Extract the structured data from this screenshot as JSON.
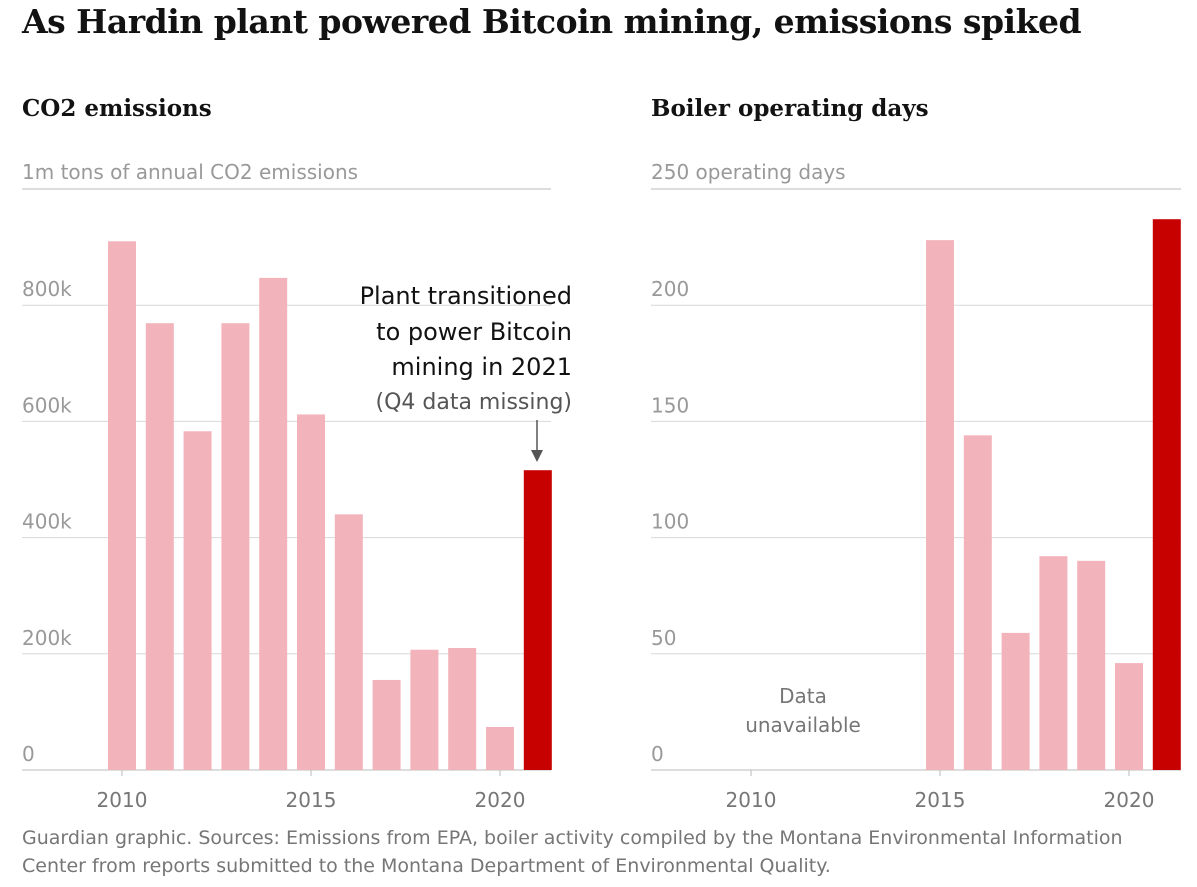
{
  "title": "As Hardin plant powered Bitcoin mining, emissions spiked",
  "footer": "Guardian graphic. Sources: Emissions from EPA, boiler activity compiled by the Montana Environmental Information Center from reports submitted to the Montana Department of Environmental Quality.",
  "colors": {
    "bar": "#f2b3bb",
    "highlight": "#c70000",
    "grid": "#d8d8d8",
    "tick_text": "#999999"
  },
  "chart_data": [
    {
      "type": "bar",
      "title": "CO2 emissions",
      "ylabel": "1m tons of annual CO2 emissions",
      "ylim": [
        0,
        1000000
      ],
      "yticks": [
        0,
        200000,
        400000,
        600000,
        800000
      ],
      "ytick_labels": [
        "0",
        "200k",
        "400k",
        "600k",
        "800k"
      ],
      "xticks": [
        2010,
        2015,
        2020
      ],
      "x": [
        2010,
        2011,
        2012,
        2013,
        2014,
        2015,
        2016,
        2017,
        2018,
        2019,
        2020,
        2021
      ],
      "values": [
        910000,
        769000,
        583000,
        769000,
        847000,
        612000,
        440000,
        155000,
        207000,
        210000,
        74000,
        516000
      ],
      "highlight": [
        2021
      ],
      "grid": true,
      "annotation": [
        "Plant transitioned",
        "to power Bitcoin",
        "mining in 2021",
        "(Q4 data missing)"
      ]
    },
    {
      "type": "bar",
      "title": "Boiler operating days",
      "ylabel": "250 operating days",
      "ylim": [
        0,
        250
      ],
      "yticks": [
        0,
        50,
        100,
        150,
        200
      ],
      "ytick_labels": [
        "0",
        "50",
        "100",
        "150",
        "200"
      ],
      "xticks": [
        2010,
        2015,
        2020
      ],
      "x": [
        2015,
        2016,
        2017,
        2018,
        2019,
        2020,
        2021
      ],
      "values": [
        228,
        144,
        59,
        92,
        90,
        46,
        237
      ],
      "highlight": [
        2021
      ],
      "grid": true,
      "annotation": [
        "Data",
        "unavailable"
      ]
    }
  ]
}
